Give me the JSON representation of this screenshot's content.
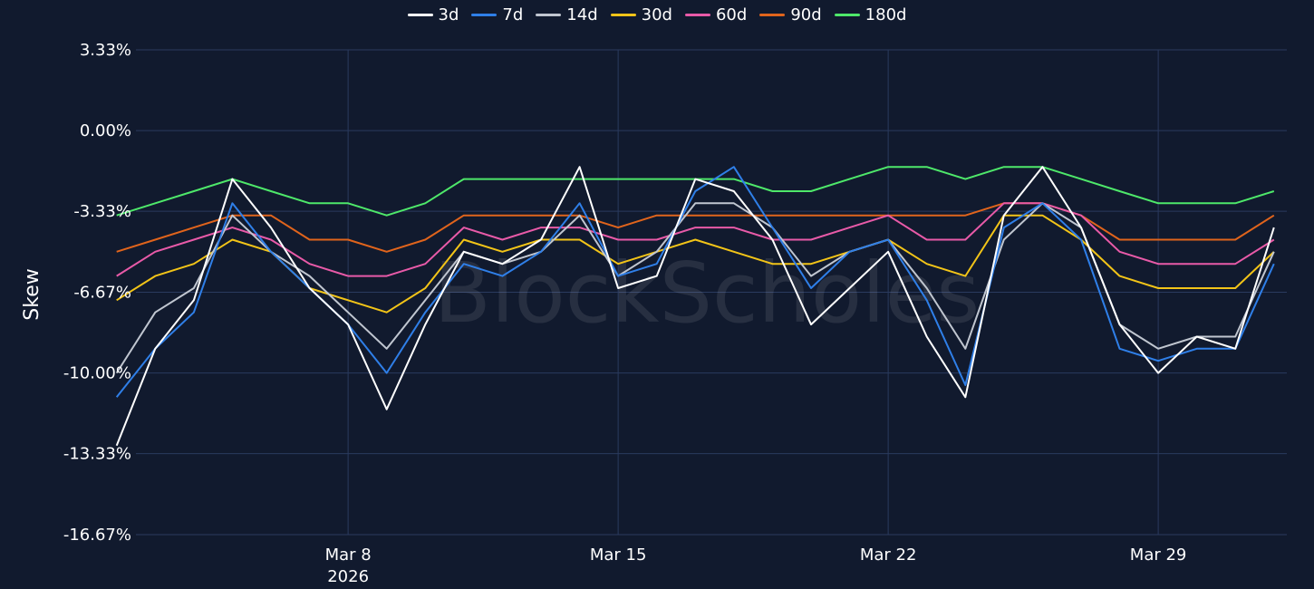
{
  "chart_data": {
    "type": "line",
    "ylabel": "Skew",
    "watermark": "BlockScholes",
    "y_ticks": [
      "3.33%",
      "0.00%",
      "-3.33%",
      "-6.67%",
      "-10.00%",
      "-13.33%",
      "-16.67%"
    ],
    "y_tick_values": [
      3.33,
      0.0,
      -3.33,
      -6.67,
      -10.0,
      -13.33,
      -16.67
    ],
    "ylim": [
      -16.67,
      3.33
    ],
    "x_ticks": [
      {
        "date": "2026-03-08",
        "label": "Mar 8",
        "sublabel": "2026"
      },
      {
        "date": "2026-03-15",
        "label": "Mar 15",
        "sublabel": ""
      },
      {
        "date": "2026-03-22",
        "label": "Mar 22",
        "sublabel": ""
      },
      {
        "date": "2026-03-29",
        "label": "Mar 29",
        "sublabel": ""
      }
    ],
    "xlim": [
      "2026-03-02T12:00",
      "2026-04-01T08:00"
    ],
    "grid": true,
    "legend_position": "top-center",
    "series": [
      {
        "name": "3d",
        "color": "#ffffff",
        "x": [
          "2026-03-02",
          "2026-03-03",
          "2026-03-04",
          "2026-03-05",
          "2026-03-06",
          "2026-03-07",
          "2026-03-08",
          "2026-03-09",
          "2026-03-10",
          "2026-03-11",
          "2026-03-12",
          "2026-03-13",
          "2026-03-14",
          "2026-03-15",
          "2026-03-16",
          "2026-03-17",
          "2026-03-18",
          "2026-03-19",
          "2026-03-20",
          "2026-03-21",
          "2026-03-22",
          "2026-03-23",
          "2026-03-24",
          "2026-03-25",
          "2026-03-26",
          "2026-03-27",
          "2026-03-28",
          "2026-03-29",
          "2026-03-30",
          "2026-03-31",
          "2026-04-01"
        ],
        "values": [
          -13.0,
          -9.0,
          -7.0,
          -2.0,
          -4.0,
          -6.5,
          -8.0,
          -11.5,
          -8.0,
          -5.0,
          -5.5,
          -4.5,
          -1.5,
          -6.5,
          -6.0,
          -2.0,
          -2.5,
          -4.5,
          -8.0,
          -6.5,
          -5.0,
          -8.5,
          -11.0,
          -3.5,
          -1.5,
          -4.0,
          -8.0,
          -10.0,
          -8.5,
          -9.0,
          -4.0
        ]
      },
      {
        "name": "7d",
        "color": "#2f7fe8",
        "x": [
          "2026-03-02",
          "2026-03-03",
          "2026-03-04",
          "2026-03-05",
          "2026-03-06",
          "2026-03-07",
          "2026-03-08",
          "2026-03-09",
          "2026-03-10",
          "2026-03-11",
          "2026-03-12",
          "2026-03-13",
          "2026-03-14",
          "2026-03-15",
          "2026-03-16",
          "2026-03-17",
          "2026-03-18",
          "2026-03-19",
          "2026-03-20",
          "2026-03-21",
          "2026-03-22",
          "2026-03-23",
          "2026-03-24",
          "2026-03-25",
          "2026-03-26",
          "2026-03-27",
          "2026-03-28",
          "2026-03-29",
          "2026-03-30",
          "2026-03-31",
          "2026-04-01"
        ],
        "values": [
          -11.0,
          -9.0,
          -7.5,
          -3.0,
          -5.0,
          -6.5,
          -8.0,
          -10.0,
          -7.5,
          -5.5,
          -6.0,
          -5.0,
          -3.0,
          -6.0,
          -5.5,
          -2.5,
          -1.5,
          -4.0,
          -6.5,
          -5.0,
          -4.5,
          -7.0,
          -10.5,
          -4.0,
          -3.0,
          -4.5,
          -9.0,
          -9.5,
          -9.0,
          -9.0,
          -5.5
        ]
      },
      {
        "name": "14d",
        "color": "#c0c6d0",
        "x": [
          "2026-03-02",
          "2026-03-03",
          "2026-03-04",
          "2026-03-05",
          "2026-03-06",
          "2026-03-07",
          "2026-03-08",
          "2026-03-09",
          "2026-03-10",
          "2026-03-11",
          "2026-03-12",
          "2026-03-13",
          "2026-03-14",
          "2026-03-15",
          "2026-03-16",
          "2026-03-17",
          "2026-03-18",
          "2026-03-19",
          "2026-03-20",
          "2026-03-21",
          "2026-03-22",
          "2026-03-23",
          "2026-03-24",
          "2026-03-25",
          "2026-03-26",
          "2026-03-27",
          "2026-03-28",
          "2026-03-29",
          "2026-03-30",
          "2026-03-31",
          "2026-04-01"
        ],
        "values": [
          -10.0,
          -7.5,
          -6.5,
          -3.5,
          -5.0,
          -6.0,
          -7.5,
          -9.0,
          -7.0,
          -5.0,
          -5.5,
          -5.0,
          -3.5,
          -6.0,
          -5.0,
          -3.0,
          -3.0,
          -4.0,
          -6.0,
          -5.0,
          -4.5,
          -6.5,
          -9.0,
          -4.5,
          -3.0,
          -4.0,
          -8.0,
          -9.0,
          -8.5,
          -8.5,
          -5.0
        ]
      },
      {
        "name": "30d",
        "color": "#f2c418",
        "x": [
          "2026-03-02",
          "2026-03-03",
          "2026-03-04",
          "2026-03-05",
          "2026-03-06",
          "2026-03-07",
          "2026-03-08",
          "2026-03-09",
          "2026-03-10",
          "2026-03-11",
          "2026-03-12",
          "2026-03-13",
          "2026-03-14",
          "2026-03-15",
          "2026-03-16",
          "2026-03-17",
          "2026-03-18",
          "2026-03-19",
          "2026-03-20",
          "2026-03-21",
          "2026-03-22",
          "2026-03-23",
          "2026-03-24",
          "2026-03-25",
          "2026-03-26",
          "2026-03-27",
          "2026-03-28",
          "2026-03-29",
          "2026-03-30",
          "2026-03-31",
          "2026-04-01"
        ],
        "values": [
          -7.0,
          -6.0,
          -5.5,
          -4.5,
          -5.0,
          -6.5,
          -7.0,
          -7.5,
          -6.5,
          -4.5,
          -5.0,
          -4.5,
          -4.5,
          -5.5,
          -5.0,
          -4.5,
          -5.0,
          -5.5,
          -5.5,
          -5.0,
          -4.5,
          -5.5,
          -6.0,
          -3.5,
          -3.5,
          -4.5,
          -6.0,
          -6.5,
          -6.5,
          -6.5,
          -5.0
        ]
      },
      {
        "name": "60d",
        "color": "#e85aa8",
        "x": [
          "2026-03-02",
          "2026-03-03",
          "2026-03-04",
          "2026-03-05",
          "2026-03-06",
          "2026-03-07",
          "2026-03-08",
          "2026-03-09",
          "2026-03-10",
          "2026-03-11",
          "2026-03-12",
          "2026-03-13",
          "2026-03-14",
          "2026-03-15",
          "2026-03-16",
          "2026-03-17",
          "2026-03-18",
          "2026-03-19",
          "2026-03-20",
          "2026-03-21",
          "2026-03-22",
          "2026-03-23",
          "2026-03-24",
          "2026-03-25",
          "2026-03-26",
          "2026-03-27",
          "2026-03-28",
          "2026-03-29",
          "2026-03-30",
          "2026-03-31",
          "2026-04-01"
        ],
        "values": [
          -6.0,
          -5.0,
          -4.5,
          -4.0,
          -4.5,
          -5.5,
          -6.0,
          -6.0,
          -5.5,
          -4.0,
          -4.5,
          -4.0,
          -4.0,
          -4.5,
          -4.5,
          -4.0,
          -4.0,
          -4.5,
          -4.5,
          -4.0,
          -3.5,
          -4.5,
          -4.5,
          -3.0,
          -3.0,
          -3.5,
          -5.0,
          -5.5,
          -5.5,
          -5.5,
          -4.5
        ]
      },
      {
        "name": "90d",
        "color": "#e0641c",
        "x": [
          "2026-03-02",
          "2026-03-03",
          "2026-03-04",
          "2026-03-05",
          "2026-03-06",
          "2026-03-07",
          "2026-03-08",
          "2026-03-09",
          "2026-03-10",
          "2026-03-11",
          "2026-03-12",
          "2026-03-13",
          "2026-03-14",
          "2026-03-15",
          "2026-03-16",
          "2026-03-17",
          "2026-03-18",
          "2026-03-19",
          "2026-03-20",
          "2026-03-21",
          "2026-03-22",
          "2026-03-23",
          "2026-03-24",
          "2026-03-25",
          "2026-03-26",
          "2026-03-27",
          "2026-03-28",
          "2026-03-29",
          "2026-03-30",
          "2026-03-31",
          "2026-04-01"
        ],
        "values": [
          -5.0,
          -4.5,
          -4.0,
          -3.5,
          -3.5,
          -4.5,
          -4.5,
          -5.0,
          -4.5,
          -3.5,
          -3.5,
          -3.5,
          -3.5,
          -4.0,
          -3.5,
          -3.5,
          -3.5,
          -3.5,
          -3.5,
          -3.5,
          -3.5,
          -3.5,
          -3.5,
          -3.0,
          -3.0,
          -3.5,
          -4.5,
          -4.5,
          -4.5,
          -4.5,
          -3.5
        ]
      },
      {
        "name": "180d",
        "color": "#4ee86a",
        "x": [
          "2026-03-02",
          "2026-03-03",
          "2026-03-04",
          "2026-03-05",
          "2026-03-06",
          "2026-03-07",
          "2026-03-08",
          "2026-03-09",
          "2026-03-10",
          "2026-03-11",
          "2026-03-12",
          "2026-03-13",
          "2026-03-14",
          "2026-03-15",
          "2026-03-16",
          "2026-03-17",
          "2026-03-18",
          "2026-03-19",
          "2026-03-20",
          "2026-03-21",
          "2026-03-22",
          "2026-03-23",
          "2026-03-24",
          "2026-03-25",
          "2026-03-26",
          "2026-03-27",
          "2026-03-28",
          "2026-03-29",
          "2026-03-30",
          "2026-03-31",
          "2026-04-01"
        ],
        "values": [
          -3.5,
          -3.0,
          -2.5,
          -2.0,
          -2.5,
          -3.0,
          -3.0,
          -3.5,
          -3.0,
          -2.0,
          -2.0,
          -2.0,
          -2.0,
          -2.0,
          -2.0,
          -2.0,
          -2.0,
          -2.5,
          -2.5,
          -2.0,
          -1.5,
          -1.5,
          -2.0,
          -1.5,
          -1.5,
          -2.0,
          -2.5,
          -3.0,
          -3.0,
          -3.0,
          -2.5
        ]
      }
    ]
  }
}
